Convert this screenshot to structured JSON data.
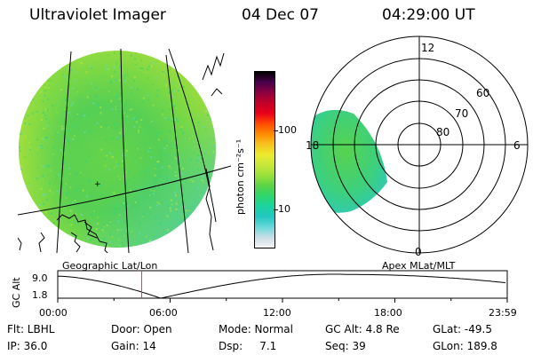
{
  "header": {
    "instrument": "Ultraviolet Imager",
    "date": "04 Dec 07",
    "time": "04:29:00 UT"
  },
  "colorbar": {
    "unit_label": "photon cm⁻²s⁻¹",
    "tick_100": "100",
    "tick_10": "10",
    "colors": [
      "#f4f4f4",
      "#c8dde6",
      "#66d9d9",
      "#22c6c0",
      "#1cd4a0",
      "#2ed66b",
      "#5bd447",
      "#9be03a",
      "#c8e83a",
      "#ecea2e",
      "#f7c31f",
      "#ff8a00",
      "#ff4a00",
      "#e8001a",
      "#c00029",
      "#8c0040",
      "#48004a",
      "#000000"
    ]
  },
  "geo_panel": {
    "label": "Geographic Lat/Lon",
    "cursor_marker": "+"
  },
  "polar_panel": {
    "label": "Apex MLat/MLT",
    "mlt_labels": {
      "top": "12",
      "right": "6",
      "bottom": "0",
      "left": "18"
    },
    "lat_labels": [
      "60",
      "70",
      "80"
    ]
  },
  "altitude_plot": {
    "ylabel": "GC Alt",
    "ytick_top": "9.0",
    "ytick_bottom": "1.8",
    "xticks": [
      "00:00",
      "06:00",
      "12:00",
      "18:00",
      "23:59"
    ],
    "current_time_hours": 4.48,
    "line_color": "#000000",
    "marker_color": "#e8383a"
  },
  "info": {
    "flt": "Flt: LBHL",
    "ip": "IP: 36.0",
    "door": "Door: Open",
    "gain": "Gain: 14",
    "mode": "Mode: Normal",
    "dsp": "Dsp:     7.1",
    "gcalt": "GC Alt: 4.8 Re",
    "seq": "Seq: 39",
    "glat": "GLat: -49.5",
    "glon": "GLon: 189.8"
  }
}
